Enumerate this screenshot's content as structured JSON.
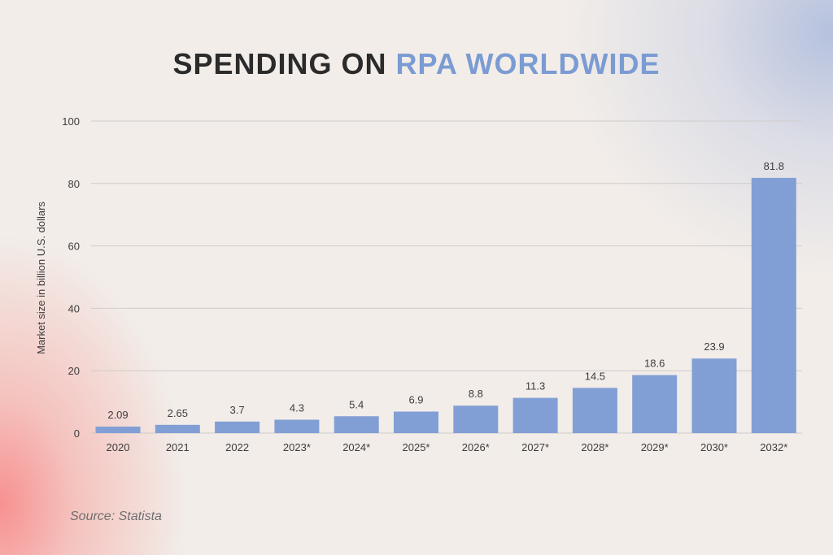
{
  "title": {
    "part1": "SPENDING ON ",
    "part2": "RPA WORLDWIDE"
  },
  "source": "Source: Statista",
  "colors": {
    "bar": "#829fd5",
    "accent": "#7b9bd3",
    "grid": "#cfcbca",
    "text": "#3d3d3d"
  },
  "chart_data": {
    "type": "bar",
    "categories": [
      "2020",
      "2021",
      "2022",
      "2023*",
      "2024*",
      "2025*",
      "2026*",
      "2027*",
      "2028*",
      "2029*",
      "2030*",
      "2032*"
    ],
    "values": [
      2.09,
      2.65,
      3.7,
      4.3,
      5.4,
      6.9,
      8.8,
      11.3,
      14.5,
      18.6,
      23.9,
      81.8
    ],
    "value_labels": [
      "2.09",
      "2.65",
      "3.7",
      "4.3",
      "5.4",
      "6.9",
      "8.8",
      "11.3",
      "14.5",
      "18.6",
      "23.9",
      "81.8"
    ],
    "ylabel": "Market size in billion U.S. dollars",
    "xlabel": "",
    "ylim": [
      0,
      100
    ],
    "yticks": [
      0,
      20,
      40,
      60,
      80,
      100
    ],
    "grid": true
  }
}
